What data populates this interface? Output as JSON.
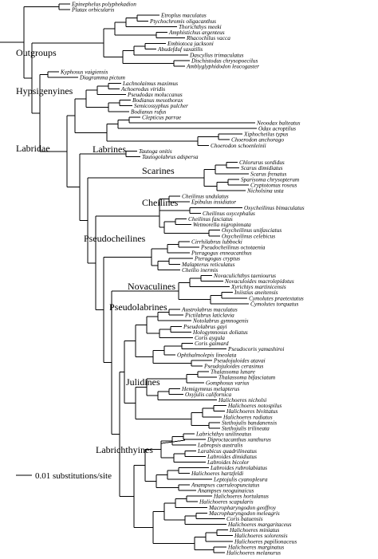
{
  "tree": {
    "taxa": [
      "Epinephelus polyphekadion",
      "Platax orbicularis",
      "Etroplus maculatus",
      "Ptychochromis oligacanthus",
      "Thorichthys meeki",
      "Amphistichus argenteus",
      "Rhacochilus vacca",
      "Embiotoca jacksoni",
      "Abudefduf saxatilis",
      "Dascyllus trimaculatus",
      "Dischistodus chrysopoecilus",
      "Amblyglyphidodon leucogaster",
      "Kyphosus vaigiensis",
      "Diagramma pictum",
      "Lachnolaimus maximus",
      "Achoerodus viridis",
      "Pseudodax moluccanus",
      "Bodianus mesothorax",
      "Semicossyphus pulcher",
      "Bodianus rufus",
      "Clepticus parrae",
      "Neoodax balteatus",
      "Odax acroptilus",
      "Xiphocheilus typus",
      "Choerodon anchorago",
      "Choerodon schoenleinii",
      "Tautoga onitis",
      "Tautogolabrus adspersa",
      "Chlorurus sordidus",
      "Scarus dimidiatus",
      "Scarus frenatus",
      "Sparisoma chrysopterum",
      "Cryptotomus roseus",
      "Nicholsina usta",
      "Cheilinus undulatus",
      "Epibulus insidiator",
      "Oxycheilinus bimaculatus",
      "Cheilinus oxycephalus",
      "Cheilinus fasciatus",
      "Wetmorella nigropinnata",
      "Oxycheilinus unifasciatus",
      "Oxycheilinus celebicus",
      "Cirrhilabrus lubbocki",
      "Pseudocheilinus octotaenia",
      "Pteragogus enneacanthus",
      "Pteragogus cryptus",
      "Malapterus reticulatus",
      "Cheilio inermis",
      "Novaculichthys taeniourus",
      "Novaculoides macrolepidotus",
      "Xyrichtys martinicensis",
      "Iniistius aneitensis",
      "Cymolutes praetextatus",
      "Cymolutes torquatus",
      "Austrolabrus maculatus",
      "Pictilabrus laticlavia",
      "Notolabrus gymnogenis",
      "Pseudolabrus gayi",
      "Hologymnosus doliatus",
      "Coris aygula",
      "Coris gaimard",
      "Pseudocoris yamashiroi",
      "Ophthalmolepis lineolata",
      "Pseudojuloides atavai",
      "Pseudojuloides cerasinus",
      "Thalassoma lunare",
      "Thalassoma bifasciatum",
      "Gomphosus varius",
      "Hemigymnus melapterus",
      "Oxyjulis californica",
      "Halichoeres nicholsi",
      "Halichoeres notospilus",
      "Halichoeres bivittatus",
      "Halichoeres radiatus",
      "Stethojulis bandanensis",
      "Stethojulis trilineata",
      "Labrichthys unilineatus",
      "Diproctacanthus xanthurus",
      "Labropsis australis",
      "Larabicus quadrilineatus",
      "Labroides dimidiatus",
      "Labroides bicolor",
      "Labroides rubrolabiatus",
      "Halichoeres hartzfeldi",
      "Leptojulis cyanopleura",
      "Anampses caeruleopunctatus",
      "Anampses neoguinaicus",
      "Halichoeres hortulanus",
      "Halichoeres scapularis",
      "Macropharyngodon geoffroy",
      "Macropharyngodon meleagris",
      "Coris batuensis",
      "Halichoeres margaritaceus",
      "Halichoeres miniatus",
      "Halichoeres solorensis",
      "Halichoeres papilionaceus",
      "Halichoeres marginatus",
      "Halichoeres melanurus"
    ],
    "clades": {
      "outgroups": "Outgroups",
      "hypsigenyines": "Hypsigenyines",
      "labridae": "Labridae",
      "labrines": "Labrines",
      "scarines": "Scarines",
      "cheilines": "Cheilines",
      "pseudocheilines": "Pseudocheilines",
      "novaculines": "Novaculines",
      "pseudolabrines": "Pseudolabrines",
      "julidines": "Julidines",
      "labrichthyines": "Labrichthyines"
    },
    "scale_label": "0.01 substitutions/site"
  }
}
